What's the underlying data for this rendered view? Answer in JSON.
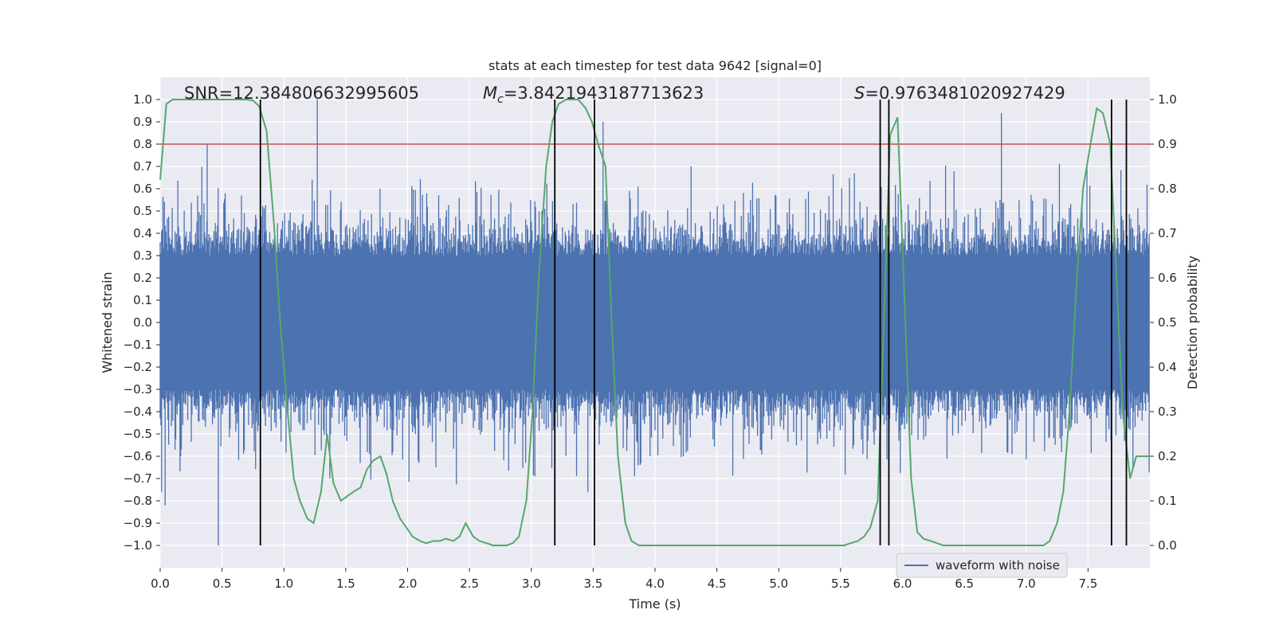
{
  "chart_data": {
    "type": "line",
    "title": "stats at each timestep for test data 9642 [signal=0]",
    "xlabel": "Time (s)",
    "ylabel": "Whitened strain",
    "y2label": "Detection probability",
    "xlim": [
      0.0,
      8.0
    ],
    "ylim": [
      -1.1,
      1.1
    ],
    "y2lim": [
      -0.05,
      1.05
    ],
    "x_ticks": [
      0.0,
      0.5,
      1.0,
      1.5,
      2.0,
      2.5,
      3.0,
      3.5,
      4.0,
      4.5,
      5.0,
      5.5,
      6.0,
      6.5,
      7.0,
      7.5
    ],
    "x_tick_labels": [
      "0.0",
      "0.5",
      "1.0",
      "1.5",
      "2.0",
      "2.5",
      "3.0",
      "3.5",
      "4.0",
      "4.5",
      "5.0",
      "5.5",
      "6.0",
      "6.5",
      "7.0",
      "7.5"
    ],
    "y_ticks": [
      -1.0,
      -0.9,
      -0.8,
      -0.7,
      -0.6,
      -0.5,
      -0.4,
      -0.3,
      -0.2,
      -0.1,
      0.0,
      0.1,
      0.2,
      0.3,
      0.4,
      0.5,
      0.6,
      0.7,
      0.8,
      0.9,
      1.0
    ],
    "y_tick_labels": [
      "−1.0",
      "−0.9",
      "−0.8",
      "−0.7",
      "−0.6",
      "−0.5",
      "−0.4",
      "−0.3",
      "−0.2",
      "−0.1",
      "0.0",
      "0.1",
      "0.2",
      "0.3",
      "0.4",
      "0.5",
      "0.6",
      "0.7",
      "0.8",
      "0.9",
      "1.0"
    ],
    "y2_ticks": [
      0.0,
      0.1,
      0.2,
      0.3,
      0.4,
      0.5,
      0.6,
      0.7,
      0.8,
      0.9,
      1.0
    ],
    "y2_tick_labels": [
      "0.0",
      "0.1",
      "0.2",
      "0.3",
      "0.4",
      "0.5",
      "0.6",
      "0.7",
      "0.8",
      "0.9",
      "1.0"
    ],
    "annotations": {
      "snr": "SNR=12.384806632995605",
      "mc_symbol": "M",
      "mc_sub": "c",
      "mc_value": "=3.8421943187713623",
      "s_symbol": "S",
      "s_value": "=0.9763481020927429"
    },
    "threshold": {
      "value": 0.9,
      "axis": "y2",
      "color": "#c44e52"
    },
    "vertical_lines": [
      0.81,
      3.19,
      3.51,
      5.82,
      5.89,
      7.69,
      7.81
    ],
    "vertical_line_range": [
      -1.0,
      1.0
    ],
    "legend": {
      "label": "waveform with noise",
      "placement": "lower-right"
    },
    "series": [
      {
        "name": "waveform with noise",
        "axis": "y",
        "color": "#4c72b0",
        "kind": "dense-noise",
        "duration_s": 8.0,
        "approx_range": [
          -1.0,
          1.0
        ],
        "peaks": [
          {
            "t": 1.27,
            "v": 1.0
          },
          {
            "t": 0.47,
            "v": -1.0
          },
          {
            "t": 0.38,
            "v": 0.8
          },
          {
            "t": 0.04,
            "v": -0.82
          },
          {
            "t": 6.8,
            "v": 0.94
          },
          {
            "t": 3.58,
            "v": 0.9
          }
        ]
      },
      {
        "name": "detection probability",
        "axis": "y2",
        "color": "#55a868",
        "x": [
          0.0,
          0.05,
          0.1,
          0.2,
          0.3,
          0.4,
          0.5,
          0.6,
          0.7,
          0.75,
          0.8,
          0.86,
          0.92,
          0.97,
          1.03,
          1.08,
          1.13,
          1.19,
          1.24,
          1.3,
          1.35,
          1.4,
          1.46,
          1.51,
          1.56,
          1.62,
          1.67,
          1.72,
          1.78,
          1.83,
          1.88,
          1.94,
          1.99,
          2.04,
          2.1,
          2.15,
          2.21,
          2.26,
          2.31,
          2.37,
          2.42,
          2.47,
          2.53,
          2.58,
          2.64,
          2.69,
          2.74,
          2.8,
          2.85,
          2.9,
          2.96,
          3.01,
          3.06,
          3.12,
          3.17,
          3.22,
          3.28,
          3.33,
          3.38,
          3.44,
          3.49,
          3.54,
          3.6,
          3.65,
          3.7,
          3.76,
          3.81,
          3.87,
          3.92,
          3.97,
          4.03,
          4.08,
          4.13,
          4.19,
          4.24,
          4.3,
          4.35,
          4.4,
          4.46,
          4.51,
          4.56,
          4.62,
          4.67,
          4.72,
          4.78,
          4.83,
          4.89,
          4.94,
          4.99,
          5.05,
          5.1,
          5.15,
          5.21,
          5.26,
          5.31,
          5.37,
          5.42,
          5.47,
          5.53,
          5.58,
          5.64,
          5.69,
          5.74,
          5.8,
          5.85,
          5.9,
          5.96,
          6.01,
          6.07,
          6.12,
          6.17,
          6.23,
          6.28,
          6.33,
          6.39,
          6.44,
          6.5,
          6.55,
          6.6,
          6.66,
          6.71,
          6.76,
          6.82,
          6.87,
          6.92,
          6.98,
          7.03,
          7.09,
          7.14,
          7.19,
          7.25,
          7.3,
          7.35,
          7.41,
          7.46,
          7.52,
          7.57,
          7.62,
          7.68,
          7.73,
          7.78,
          7.84,
          7.89,
          7.95,
          8.0
        ],
        "y": [
          0.82,
          0.99,
          1.0,
          1.0,
          1.0,
          1.0,
          1.0,
          1.0,
          1.0,
          0.998,
          0.985,
          0.93,
          0.72,
          0.5,
          0.3,
          0.15,
          0.1,
          0.06,
          0.05,
          0.12,
          0.25,
          0.14,
          0.1,
          0.11,
          0.12,
          0.13,
          0.17,
          0.19,
          0.2,
          0.16,
          0.1,
          0.06,
          0.04,
          0.02,
          0.01,
          0.005,
          0.01,
          0.01,
          0.015,
          0.01,
          0.02,
          0.05,
          0.02,
          0.01,
          0.005,
          0.0,
          0.0,
          0.0,
          0.005,
          0.02,
          0.1,
          0.3,
          0.6,
          0.85,
          0.95,
          0.99,
          1.0,
          1.0,
          1.0,
          0.98,
          0.95,
          0.9,
          0.85,
          0.5,
          0.2,
          0.05,
          0.01,
          0.0,
          0.0,
          0.0,
          0.0,
          0.0,
          0.0,
          0.0,
          0.0,
          0.0,
          0.0,
          0.0,
          0.0,
          0.0,
          0.0,
          0.0,
          0.0,
          0.0,
          0.0,
          0.0,
          0.0,
          0.0,
          0.0,
          0.0,
          0.0,
          0.0,
          0.0,
          0.0,
          0.0,
          0.0,
          0.0,
          0.0,
          0.0,
          0.005,
          0.01,
          0.02,
          0.04,
          0.1,
          0.5,
          0.92,
          0.96,
          0.6,
          0.15,
          0.03,
          0.015,
          0.01,
          0.005,
          0.0,
          0.0,
          0.0,
          0.0,
          0.0,
          0.0,
          0.0,
          0.0,
          0.0,
          0.0,
          0.0,
          0.0,
          0.0,
          0.0,
          0.0,
          0.0,
          0.01,
          0.05,
          0.12,
          0.3,
          0.6,
          0.8,
          0.9,
          0.98,
          0.97,
          0.9,
          0.6,
          0.3,
          0.15,
          0.2,
          0.2,
          0.2
        ]
      }
    ]
  }
}
